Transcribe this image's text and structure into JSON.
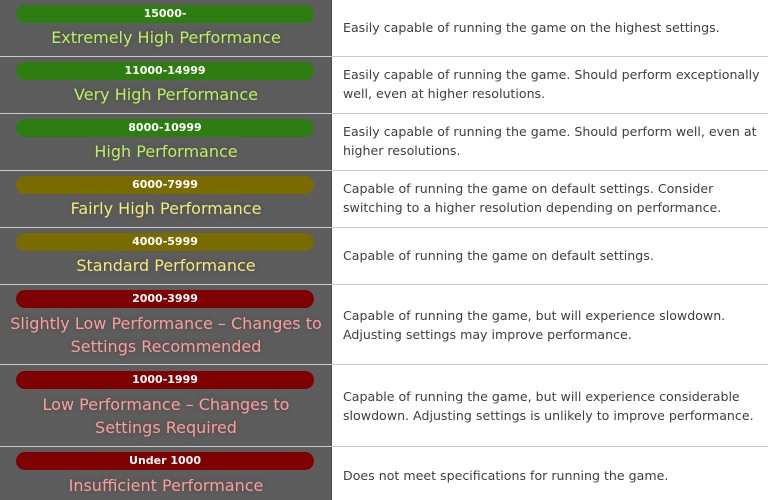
{
  "colors": {
    "green_pill": "#2e7d10",
    "olive_pill": "#7a6b00",
    "red_pill": "#7e0000",
    "green_text": "#b9f25d",
    "yellow_text": "#f3ea7a",
    "red_text": "#ff9c9c"
  },
  "rows": [
    {
      "range": "15000-",
      "label": "Extremely High Performance",
      "description": "Easily capable of running the game on the highest settings."
    },
    {
      "range": "11000-14999",
      "label": "Very High Performance",
      "description": "Easily capable of running the game. Should perform exceptionally well, even at higher resolutions."
    },
    {
      "range": "8000-10999",
      "label": "High Performance",
      "description": "Easily capable of running the game. Should perform well, even at higher resolutions."
    },
    {
      "range": "6000-7999",
      "label": "Fairly High Performance",
      "description": "Capable of running the game on default settings. Consider switching to a higher resolution depending on performance."
    },
    {
      "range": "4000-5999",
      "label": "Standard Performance",
      "description": "Capable of running the game on default settings."
    },
    {
      "range": "2000-3999",
      "label": "Slightly Low Performance – Changes to Settings Recommended",
      "description": "Capable of running the game, but will experience slowdown. Adjusting settings may improve performance."
    },
    {
      "range": "1000-1999",
      "label": "Low Performance – Changes to Settings Required",
      "description": "Capable of running the game, but will experience considerable slowdown. Adjusting settings is unlikely to improve performance."
    },
    {
      "range": "Under 1000",
      "label": "Insufficient Performance",
      "description": "Does not meet specifications for running the game."
    }
  ]
}
